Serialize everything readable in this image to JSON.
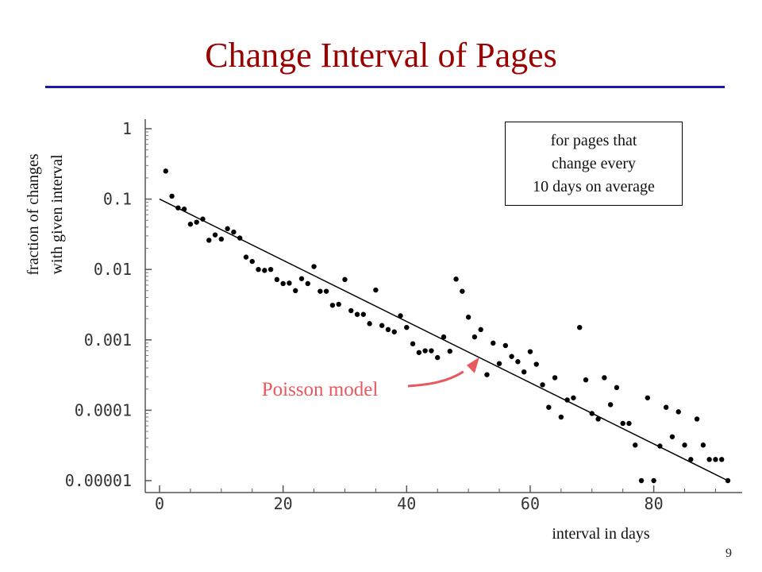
{
  "slide": {
    "title": "Change Interval of Pages",
    "note_lines": [
      "for pages that",
      "change every",
      "10 days on average"
    ],
    "model_label": "Poisson model",
    "page_number": "9",
    "title_color": "#990000",
    "rule_color": "#1a1aa6",
    "callout_color": "#e8585c"
  },
  "chart_data": {
    "type": "scatter",
    "title": "",
    "xlabel": "interval in days",
    "ylabel_lines": [
      "fraction of changes",
      "with given interval"
    ],
    "x_scale": "linear",
    "y_scale": "log",
    "xlim": [
      0,
      92
    ],
    "ylim": [
      1e-05,
      1
    ],
    "x_ticks": [
      0,
      20,
      40,
      60,
      80
    ],
    "x_tick_labels": [
      "0",
      "20",
      "40",
      "60",
      "80"
    ],
    "y_ticks": [
      1,
      0.1,
      0.01,
      0.001,
      0.0001,
      1e-05
    ],
    "y_tick_labels": [
      "1",
      "0.1",
      "0.01",
      "0.001",
      "0.0001",
      "0.00001"
    ],
    "grid": false,
    "series": [
      {
        "type": "scatter",
        "x": [
          1,
          2,
          3,
          4,
          5,
          6,
          7,
          8,
          9,
          10,
          11,
          12,
          13,
          14,
          15,
          16,
          17,
          18,
          19,
          20,
          21,
          22,
          23,
          24,
          25,
          26,
          27,
          28,
          29,
          30,
          31,
          32,
          33,
          34,
          35,
          36,
          37,
          38,
          39,
          40,
          41,
          42,
          43,
          44,
          45,
          46,
          47,
          48,
          49,
          50,
          51,
          52,
          53,
          54,
          55,
          56,
          57,
          58,
          59,
          60,
          61,
          62,
          63,
          64,
          65,
          66,
          67,
          68,
          69,
          70,
          71,
          72,
          73,
          74,
          75,
          76,
          77,
          78,
          79,
          80,
          81,
          82,
          83,
          84,
          85,
          86,
          87,
          88,
          89,
          90,
          91,
          92
        ],
        "y": [
          0.25,
          0.11,
          0.075,
          0.072,
          0.044,
          0.047,
          0.052,
          0.026,
          0.031,
          0.027,
          0.038,
          0.034,
          0.028,
          0.015,
          0.013,
          0.01,
          0.0097,
          0.01,
          0.0072,
          0.0063,
          0.0064,
          0.005,
          0.0074,
          0.0063,
          0.011,
          0.0049,
          0.0049,
          0.0031,
          0.0032,
          0.0072,
          0.0026,
          0.0023,
          0.0023,
          0.0017,
          0.0051,
          0.0016,
          0.0014,
          0.0013,
          0.0022,
          0.0015,
          0.00088,
          0.00066,
          0.0007,
          0.0007,
          0.00056,
          0.0011,
          0.00069,
          0.0073,
          0.0049,
          0.0021,
          0.0011,
          0.0014,
          0.00032,
          0.0009,
          0.00046,
          0.00083,
          0.00058,
          0.00049,
          0.00035,
          0.00068,
          0.00045,
          0.00023,
          0.00011,
          0.00029,
          8e-05,
          0.00014,
          0.00015,
          0.0015,
          0.00027,
          9e-05,
          7.5e-05,
          0.00029,
          0.00012,
          0.00021,
          6.5e-05,
          6.5e-05,
          3.2e-05,
          1e-05,
          0.00015,
          1e-05,
          3.1e-05,
          0.00011,
          4.2e-05,
          9.5e-05,
          3.2e-05,
          2e-05,
          7.5e-05,
          3.2e-05,
          2e-05,
          2e-05,
          2e-05,
          1e-05
        ]
      },
      {
        "type": "line",
        "x": [
          0,
          92
        ],
        "y": [
          0.1,
          1e-05
        ]
      }
    ],
    "annotation": {
      "label": "Poisson model",
      "x": 51,
      "y": 0.00066
    }
  }
}
